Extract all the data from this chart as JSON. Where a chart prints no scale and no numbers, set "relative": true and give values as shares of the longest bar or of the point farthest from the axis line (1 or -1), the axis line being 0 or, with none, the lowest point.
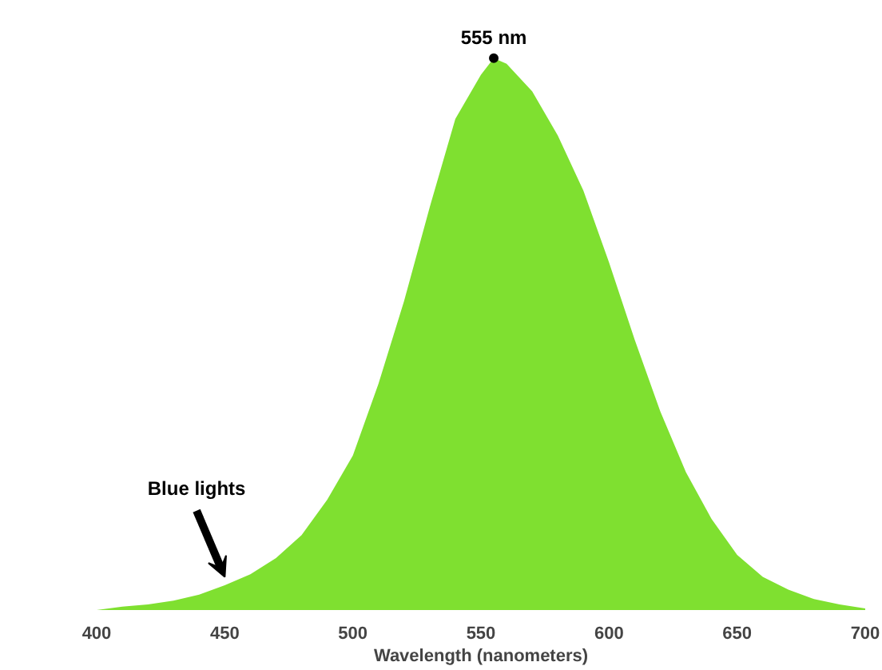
{
  "chart_data": {
    "type": "area",
    "relative": true,
    "xlabel": "Wavelength (nanometers)",
    "x": [
      400,
      410,
      420,
      430,
      440,
      450,
      460,
      470,
      480,
      490,
      500,
      510,
      520,
      530,
      540,
      550,
      555,
      560,
      570,
      580,
      590,
      600,
      610,
      620,
      630,
      640,
      650,
      660,
      670,
      680,
      690,
      700
    ],
    "series": [
      {
        "color": "#7fe030",
        "values": [
          0,
          0.006,
          0.01,
          0.017,
          0.028,
          0.045,
          0.065,
          0.094,
          0.136,
          0.2,
          0.28,
          0.41,
          0.56,
          0.73,
          0.89,
          0.97,
          1,
          0.99,
          0.94,
          0.86,
          0.76,
          0.63,
          0.49,
          0.36,
          0.25,
          0.165,
          0.1,
          0.06,
          0.037,
          0.02,
          0.01,
          0.003
        ]
      }
    ],
    "xlim": [
      400,
      700
    ],
    "xticks": [
      400,
      450,
      500,
      550,
      600,
      650,
      700
    ],
    "grid": false,
    "annotations": [
      {
        "text": "555 nm",
        "x": 555,
        "y": 1
      },
      {
        "text": "Blue lights",
        "x": 450,
        "y": 0.06
      }
    ]
  }
}
